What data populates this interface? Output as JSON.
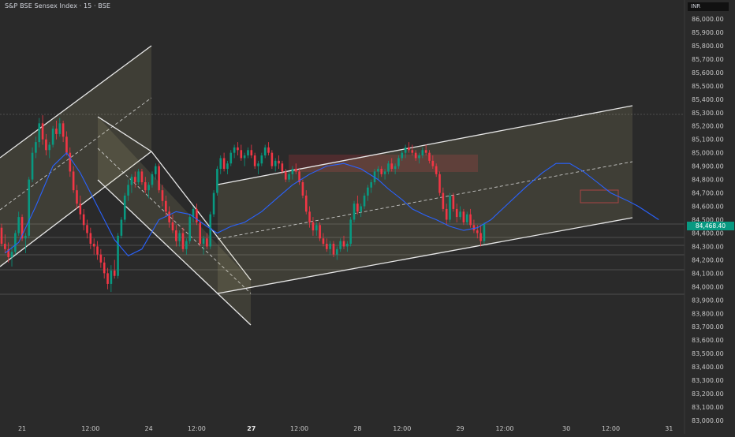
{
  "header": {
    "title": "S&P BSE Sensex Index · 15 · BSE",
    "currency": "INR",
    "last_price": "84,468.40"
  },
  "colors": {
    "background": "#2a2a2a",
    "up": "#089981",
    "down": "#f23645",
    "ma": "#2962ff",
    "channel": "#e8e8e8",
    "channel_fill": "#e0d890",
    "zone_red": "#f23645"
  },
  "chart_data": {
    "type": "candlestick",
    "title": "S&P BSE Sensex Index · 15 · BSE",
    "y_axis": {
      "side": "right",
      "range": [
        82950,
        86080
      ],
      "ticks": [
        "86,000.00",
        "85,900.00",
        "85,800.00",
        "85,700.00",
        "85,600.00",
        "85,500.00",
        "85,400.00",
        "85,300.00",
        "85,200.00",
        "85,100.00",
        "85,000.00",
        "84,900.00",
        "84,800.00",
        "84,700.00",
        "84,600.00",
        "84,500.00",
        "84,400.00",
        "84,300.00",
        "84,200.00",
        "84,100.00",
        "84,000.00",
        "83,900.00",
        "83,800.00",
        "83,700.00",
        "83,600.00",
        "83,500.00",
        "83,400.00",
        "83,300.00",
        "83,200.00",
        "83,100.00",
        "83,000.00"
      ]
    },
    "x_axis": {
      "range": [
        0,
        190
      ],
      "ticks": [
        {
          "label": "21",
          "i": 6
        },
        {
          "label": "12:00",
          "i": 26
        },
        {
          "label": "24",
          "i": 43
        },
        {
          "label": "12:00",
          "i": 57
        },
        {
          "label": "27",
          "i": 73
        },
        {
          "label": "12:00",
          "i": 87
        },
        {
          "label": "28",
          "i": 104
        },
        {
          "label": "12:00",
          "i": 117
        },
        {
          "label": "29",
          "i": 134
        },
        {
          "label": "12:00",
          "i": 147
        },
        {
          "label": "30",
          "i": 165
        },
        {
          "label": "12:00",
          "i": 178
        },
        {
          "label": "31",
          "i": 195
        }
      ]
    },
    "grid": false,
    "candles": [
      [
        84440,
        84470,
        84300,
        84320
      ],
      [
        84320,
        84390,
        84250,
        84280
      ],
      [
        84280,
        84330,
        84180,
        84220
      ],
      [
        84220,
        84300,
        84150,
        84260
      ],
      [
        84260,
        84420,
        84240,
        84400
      ],
      [
        84400,
        84560,
        84380,
        84520
      ],
      [
        84520,
        84540,
        84340,
        84360
      ],
      [
        84360,
        84400,
        84250,
        84380
      ],
      [
        84380,
        84820,
        84360,
        84800
      ],
      [
        84800,
        85040,
        84780,
        85000
      ],
      [
        85000,
        85120,
        84960,
        85080
      ],
      [
        85080,
        85260,
        85040,
        85220
      ],
      [
        85220,
        85280,
        85060,
        85100
      ],
      [
        85100,
        85140,
        84980,
        85020
      ],
      [
        85020,
        85080,
        84960,
        85060
      ],
      [
        85060,
        85200,
        85040,
        85180
      ],
      [
        85180,
        85240,
        85100,
        85140
      ],
      [
        85140,
        85260,
        85120,
        85220
      ],
      [
        85220,
        85240,
        85080,
        85120
      ],
      [
        85120,
        85160,
        84980,
        85000
      ],
      [
        85000,
        85040,
        84820,
        84860
      ],
      [
        84860,
        84900,
        84700,
        84720
      ],
      [
        84720,
        84760,
        84580,
        84620
      ],
      [
        84620,
        84680,
        84500,
        84540
      ],
      [
        84540,
        84580,
        84420,
        84460
      ],
      [
        84460,
        84500,
        84360,
        84400
      ],
      [
        84400,
        84440,
        84280,
        84320
      ],
      [
        84320,
        84360,
        84240,
        84300
      ],
      [
        84300,
        84340,
        84200,
        84240
      ],
      [
        84240,
        84280,
        84140,
        84180
      ],
      [
        84180,
        84220,
        84060,
        84100
      ],
      [
        84100,
        84140,
        83980,
        84020
      ],
      [
        84020,
        84160,
        83960,
        84120
      ],
      [
        84120,
        84200,
        84060,
        84080
      ],
      [
        84080,
        84400,
        84060,
        84380
      ],
      [
        84380,
        84520,
        84360,
        84500
      ],
      [
        84500,
        84700,
        84480,
        84680
      ],
      [
        84680,
        84800,
        84640,
        84760
      ],
      [
        84760,
        84840,
        84700,
        84820
      ],
      [
        84820,
        84860,
        84740,
        84780
      ],
      [
        84780,
        84880,
        84760,
        84860
      ],
      [
        84860,
        84880,
        84760,
        84780
      ],
      [
        84780,
        84820,
        84700,
        84720
      ],
      [
        84720,
        84780,
        84660,
        84760
      ],
      [
        84760,
        84860,
        84740,
        84840
      ],
      [
        84840,
        84920,
        84800,
        84900
      ],
      [
        84900,
        84920,
        84700,
        84720
      ],
      [
        84720,
        84760,
        84600,
        84640
      ],
      [
        84640,
        84680,
        84520,
        84560
      ],
      [
        84560,
        84600,
        84440,
        84480
      ],
      [
        84480,
        84540,
        84400,
        84420
      ],
      [
        84420,
        84460,
        84300,
        84340
      ],
      [
        84340,
        84420,
        84300,
        84400
      ],
      [
        84400,
        84440,
        84260,
        84280
      ],
      [
        84280,
        84360,
        84240,
        84340
      ],
      [
        84340,
        84540,
        84320,
        84520
      ],
      [
        84520,
        84600,
        84480,
        84580
      ],
      [
        84580,
        84620,
        84460,
        84480
      ],
      [
        84480,
        84500,
        84300,
        84320
      ],
      [
        84320,
        84380,
        84240,
        84360
      ],
      [
        84360,
        84400,
        84280,
        84300
      ],
      [
        84300,
        84560,
        84280,
        84540
      ],
      [
        84540,
        84720,
        84520,
        84700
      ],
      [
        84700,
        84900,
        84680,
        84880
      ],
      [
        84880,
        84980,
        84840,
        84960
      ],
      [
        84960,
        85000,
        84860,
        84880
      ],
      [
        84880,
        84940,
        84840,
        84920
      ],
      [
        84920,
        85020,
        84900,
        85000
      ],
      [
        85000,
        85060,
        84960,
        85040
      ],
      [
        85040,
        85080,
        84980,
        85020
      ],
      [
        85020,
        85060,
        84940,
        84960
      ],
      [
        84960,
        85000,
        84900,
        84980
      ],
      [
        84980,
        85040,
        84960,
        85020
      ],
      [
        85020,
        85060,
        84960,
        84980
      ],
      [
        84980,
        85000,
        84880,
        84900
      ],
      [
        84900,
        84940,
        84840,
        84920
      ],
      [
        84920,
        85000,
        84900,
        84980
      ],
      [
        84980,
        85060,
        84960,
        85040
      ],
      [
        85040,
        85080,
        84980,
        85000
      ],
      [
        85000,
        85020,
        84880,
        84900
      ],
      [
        84900,
        84960,
        84860,
        84940
      ],
      [
        84940,
        84980,
        84880,
        84920
      ],
      [
        84920,
        84940,
        84840,
        84860
      ],
      [
        84860,
        84880,
        84780,
        84800
      ],
      [
        84800,
        84860,
        84780,
        84840
      ],
      [
        84840,
        84900,
        84800,
        84880
      ],
      [
        84880,
        84920,
        84840,
        84860
      ],
      [
        84860,
        84880,
        84760,
        84780
      ],
      [
        84780,
        84800,
        84660,
        84680
      ],
      [
        84680,
        84720,
        84540,
        84560
      ],
      [
        84560,
        84600,
        84440,
        84480
      ],
      [
        84480,
        84520,
        84380,
        84420
      ],
      [
        84420,
        84480,
        84380,
        84460
      ],
      [
        84460,
        84480,
        84340,
        84360
      ],
      [
        84360,
        84400,
        84300,
        84320
      ],
      [
        84320,
        84360,
        84260,
        84280
      ],
      [
        84280,
        84340,
        84240,
        84320
      ],
      [
        84320,
        84340,
        84220,
        84240
      ],
      [
        84240,
        84300,
        84200,
        84280
      ],
      [
        84280,
        84360,
        84260,
        84340
      ],
      [
        84340,
        84380,
        84280,
        84300
      ],
      [
        84300,
        84340,
        84260,
        84320
      ],
      [
        84320,
        84520,
        84300,
        84500
      ],
      [
        84500,
        84640,
        84480,
        84620
      ],
      [
        84620,
        84680,
        84540,
        84560
      ],
      [
        84560,
        84620,
        84520,
        84600
      ],
      [
        84600,
        84700,
        84580,
        84680
      ],
      [
        84680,
        84760,
        84640,
        84740
      ],
      [
        84740,
        84800,
        84700,
        84780
      ],
      [
        84780,
        84880,
        84760,
        84860
      ],
      [
        84860,
        84900,
        84800,
        84880
      ],
      [
        84880,
        84900,
        84820,
        84840
      ],
      [
        84840,
        84880,
        84800,
        84860
      ],
      [
        84860,
        84940,
        84840,
        84920
      ],
      [
        84920,
        84960,
        84860,
        84880
      ],
      [
        84880,
        84920,
        84840,
        84900
      ],
      [
        84900,
        84980,
        84880,
        84960
      ],
      [
        84960,
        85020,
        84940,
        85000
      ],
      [
        85000,
        85060,
        84960,
        85040
      ],
      [
        85040,
        85080,
        85000,
        85020
      ],
      [
        85020,
        85060,
        84980,
        85000
      ],
      [
        85000,
        85020,
        84940,
        84960
      ],
      [
        84960,
        85000,
        84920,
        84980
      ],
      [
        84980,
        85040,
        84960,
        85020
      ],
      [
        85020,
        85060,
        84980,
        85000
      ],
      [
        85000,
        85020,
        84920,
        84940
      ],
      [
        84940,
        84980,
        84880,
        84900
      ],
      [
        84900,
        84920,
        84820,
        84840
      ],
      [
        84840,
        84860,
        84680,
        84700
      ],
      [
        84700,
        84740,
        84560,
        84580
      ],
      [
        84580,
        84620,
        84460,
        84500
      ],
      [
        84500,
        84700,
        84480,
        84680
      ],
      [
        84680,
        84700,
        84560,
        84580
      ],
      [
        84580,
        84620,
        84480,
        84520
      ],
      [
        84520,
        84600,
        84500,
        84560
      ],
      [
        84560,
        84580,
        84460,
        84480
      ],
      [
        84480,
        84560,
        84460,
        84540
      ],
      [
        84540,
        84580,
        84440,
        84460
      ],
      [
        84460,
        84500,
        84400,
        84420
      ],
      [
        84420,
        84460,
        84360,
        84400
      ],
      [
        84400,
        84460,
        84300,
        84340
      ],
      [
        84340,
        84480,
        84320,
        84468
      ]
    ],
    "moving_average": [
      [
        1,
        84250
      ],
      [
        5,
        84330
      ],
      [
        10,
        84600
      ],
      [
        15,
        84900
      ],
      [
        19,
        85000
      ],
      [
        23,
        84850
      ],
      [
        28,
        84600
      ],
      [
        33,
        84350
      ],
      [
        37,
        84230
      ],
      [
        41,
        84280
      ],
      [
        46,
        84500
      ],
      [
        51,
        84560
      ],
      [
        55,
        84540
      ],
      [
        60,
        84450
      ],
      [
        63,
        84400
      ],
      [
        67,
        84450
      ],
      [
        71,
        84480
      ],
      [
        76,
        84560
      ],
      [
        80,
        84650
      ],
      [
        85,
        84760
      ],
      [
        90,
        84840
      ],
      [
        95,
        84900
      ],
      [
        100,
        84920
      ],
      [
        105,
        84880
      ],
      [
        110,
        84800
      ],
      [
        113,
        84730
      ],
      [
        117,
        84650
      ],
      [
        120,
        84580
      ],
      [
        124,
        84530
      ],
      [
        127,
        84500
      ],
      [
        131,
        84450
      ],
      [
        135,
        84420
      ],
      [
        139,
        84440
      ],
      [
        143,
        84500
      ],
      [
        148,
        84620
      ],
      [
        153,
        84740
      ],
      [
        158,
        84850
      ],
      [
        162,
        84920
      ],
      [
        166,
        84920
      ],
      [
        170,
        84860
      ],
      [
        174,
        84780
      ],
      [
        178,
        84700
      ],
      [
        183,
        84640
      ],
      [
        186,
        84600
      ],
      [
        189,
        84550
      ],
      [
        192,
        84500
      ]
    ]
  }
}
